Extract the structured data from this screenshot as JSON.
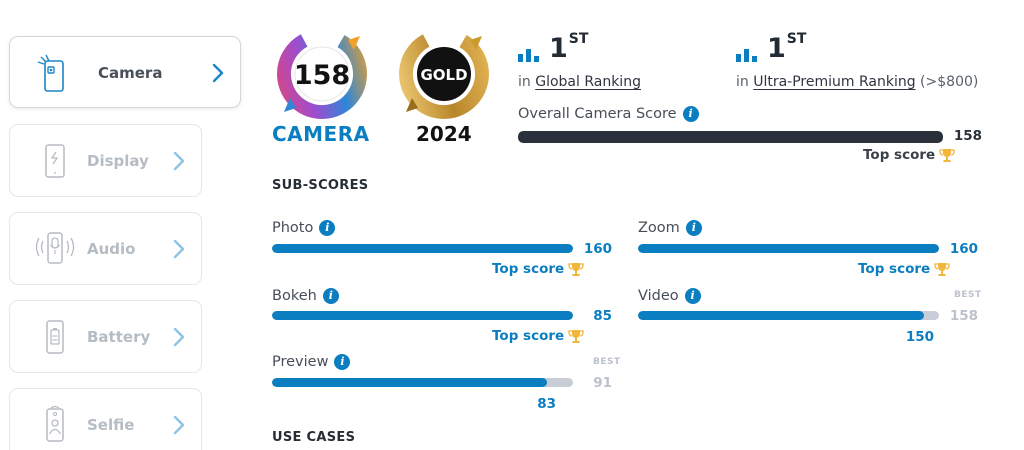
{
  "sidebar": {
    "items": [
      {
        "label": "Camera"
      },
      {
        "label": "Display"
      },
      {
        "label": "Audio"
      },
      {
        "label": "Battery"
      },
      {
        "label": "Selfie"
      }
    ]
  },
  "badges": {
    "score_value": "158",
    "score_title": "CAMERA",
    "award_label": "GOLD",
    "award_year": "2024",
    "colors": {
      "brand_blue": "#0a7ec0",
      "gold": "#c99a2e"
    }
  },
  "rankings": [
    {
      "rank": "1",
      "suffix": "ST",
      "prefix": "in ",
      "link": "Global Ranking",
      "extra": ""
    },
    {
      "rank": "1",
      "suffix": "ST",
      "prefix": "in ",
      "link": "Ultra-Premium Ranking",
      "extra": " (>$800)"
    }
  ],
  "overall": {
    "label": "Overall Camera Score",
    "value": "158",
    "fill": 1.0,
    "top_score": "Top score"
  },
  "subscores": {
    "heading": "SUB-SCORES",
    "best_label": "BEST",
    "items": [
      {
        "label": "Photo",
        "value": "160",
        "best": "",
        "fill": 1.0,
        "top_score": "Top score"
      },
      {
        "label": "Zoom",
        "value": "160",
        "best": "",
        "fill": 1.0,
        "top_score": "Top score"
      },
      {
        "label": "Bokeh",
        "value": "85",
        "best": "",
        "fill": 1.0,
        "top_score": "Top score"
      },
      {
        "label": "Video",
        "value": "150",
        "best": "158",
        "fill": 0.949,
        "top_score": ""
      },
      {
        "label": "Preview",
        "value": "83",
        "best": "91",
        "fill": 0.912,
        "top_score": ""
      }
    ]
  },
  "use_cases": {
    "heading": "USE CASES"
  }
}
